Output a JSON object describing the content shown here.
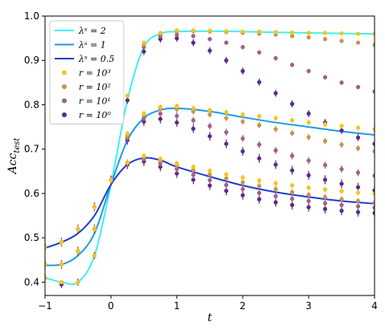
{
  "chart_data": {
    "type": "line",
    "xlabel": "t",
    "ylabel": "Acc_test",
    "xlim": [
      -1,
      4
    ],
    "ylim": [
      0.37,
      1.0
    ],
    "xticks": [
      -1,
      0,
      1,
      2,
      3,
      4
    ],
    "yticks": [
      0.4,
      0.5,
      0.6,
      0.7,
      0.8,
      0.9,
      1.0
    ],
    "xtick_labels": [
      "−1",
      "0",
      "1",
      "2",
      "3",
      "4"
    ],
    "ytick_labels": [
      "0.4",
      "0.5",
      "0.6",
      "0.7",
      "0.8",
      "0.9",
      "1.0"
    ],
    "legend_position": "top-left",
    "lines": [
      {
        "name": "λˢ = 2",
        "color": "#3ff0f0",
        "x": [
          -1,
          -0.75,
          -0.5,
          -0.25,
          0,
          0.25,
          0.5,
          0.75,
          1,
          1.5,
          2,
          3,
          4
        ],
        "y": [
          0.41,
          0.4,
          0.4,
          0.46,
          0.62,
          0.81,
          0.93,
          0.96,
          0.965,
          0.966,
          0.965,
          0.962,
          0.96
        ]
      },
      {
        "name": "λˢ = 1",
        "color": "#1e9be8",
        "x": [
          -1,
          -0.75,
          -0.5,
          -0.25,
          0,
          0.25,
          0.5,
          0.75,
          1,
          1.5,
          2,
          2.5,
          3,
          3.5,
          4
        ],
        "y": [
          0.438,
          0.44,
          0.46,
          0.51,
          0.62,
          0.72,
          0.77,
          0.788,
          0.792,
          0.785,
          0.772,
          0.76,
          0.75,
          0.74,
          0.732
        ]
      },
      {
        "name": "λˢ = 0.5",
        "color": "#1f3fcf",
        "x": [
          -1,
          -0.75,
          -0.5,
          -0.25,
          0,
          0.25,
          0.5,
          0.75,
          1,
          1.5,
          2,
          2.5,
          3,
          3.5,
          4
        ],
        "y": [
          0.477,
          0.49,
          0.51,
          0.55,
          0.62,
          0.665,
          0.68,
          0.675,
          0.66,
          0.638,
          0.618,
          0.603,
          0.592,
          0.583,
          0.577
        ]
      }
    ],
    "scatter": [
      {
        "name": "r = 10³",
        "color": "#f5c518",
        "groups": [
          {
            "x": [
              -1,
              -0.75,
              -0.5,
              -0.25,
              0,
              0.25,
              0.5,
              0.75,
              1,
              1.25,
              1.5,
              1.75,
              2,
              2.25,
              2.5,
              2.75,
              3,
              3.25,
              3.5,
              3.75,
              4
            ],
            "y": [
              0.41,
              0.4,
              0.4,
              0.46,
              0.63,
              0.82,
              0.94,
              0.962,
              0.968,
              0.968,
              0.967,
              0.966,
              0.965,
              0.965,
              0.964,
              0.963,
              0.962,
              0.962,
              0.961,
              0.96,
              0.96
            ],
            "err": 0.003
          },
          {
            "x": [
              -1,
              -0.75,
              -0.5,
              -0.25,
              0,
              0.25,
              0.5,
              0.75,
              1,
              1.25,
              1.5,
              1.75,
              2,
              2.25,
              2.5,
              2.75,
              3,
              3.25,
              3.5,
              3.75,
              4
            ],
            "y": [
              0.44,
              0.44,
              0.47,
              0.52,
              0.63,
              0.735,
              0.78,
              0.795,
              0.797,
              0.792,
              0.788,
              0.783,
              0.778,
              0.774,
              0.77,
              0.765,
              0.76,
              0.756,
              0.752,
              0.748,
              0.745
            ],
            "err": 0.006
          },
          {
            "x": [
              -1,
              -0.75,
              -0.5,
              -0.25,
              0,
              0.25,
              0.5,
              0.75,
              1,
              1.25,
              1.5,
              1.75,
              2,
              2.25,
              2.5,
              2.75,
              3,
              3.25,
              3.5,
              3.75,
              4
            ],
            "y": [
              0.48,
              0.49,
              0.52,
              0.57,
              0.63,
              0.67,
              0.685,
              0.678,
              0.668,
              0.66,
              0.651,
              0.643,
              0.636,
              0.629,
              0.623,
              0.618,
              0.613,
              0.609,
              0.605,
              0.602,
              0.6
            ],
            "err": 0.006
          }
        ]
      },
      {
        "name": "r = 10²",
        "color": "#c8944e",
        "groups": [
          {
            "x": [
              -1,
              -0.75,
              -0.5,
              -0.25,
              0,
              0.25,
              0.5,
              0.75,
              1,
              1.25,
              1.5,
              1.75,
              2,
              2.25,
              2.5,
              2.75,
              3,
              3.25,
              3.5,
              3.75,
              4
            ],
            "y": [
              0.41,
              0.4,
              0.4,
              0.46,
              0.63,
              0.82,
              0.935,
              0.96,
              0.965,
              0.966,
              0.965,
              0.964,
              0.962,
              0.96,
              0.958,
              0.955,
              0.952,
              0.948,
              0.944,
              0.94,
              0.935
            ],
            "err": 0.004
          },
          {
            "x": [
              -1,
              -0.75,
              -0.5,
              -0.25,
              0,
              0.25,
              0.5,
              0.75,
              1,
              1.25,
              1.5,
              1.75,
              2,
              2.25,
              2.5,
              2.75,
              3,
              3.25,
              3.5,
              3.75,
              4
            ],
            "y": [
              0.44,
              0.44,
              0.47,
              0.52,
              0.63,
              0.73,
              0.778,
              0.79,
              0.79,
              0.785,
              0.778,
              0.77,
              0.762,
              0.754,
              0.745,
              0.736,
              0.727,
              0.718,
              0.71,
              0.702,
              0.695
            ],
            "err": 0.007
          },
          {
            "x": [
              -1,
              -0.75,
              -0.5,
              -0.25,
              0,
              0.25,
              0.5,
              0.75,
              1,
              1.25,
              1.5,
              1.75,
              2,
              2.25,
              2.5,
              2.75,
              3,
              3.25,
              3.5,
              3.75,
              4
            ],
            "y": [
              0.48,
              0.49,
              0.52,
              0.57,
              0.63,
              0.67,
              0.683,
              0.675,
              0.663,
              0.653,
              0.643,
              0.634,
              0.625,
              0.617,
              0.61,
              0.603,
              0.597,
              0.592,
              0.587,
              0.583,
              0.579
            ],
            "err": 0.007
          }
        ]
      },
      {
        "name": "r = 10¹",
        "color": "#a0608a",
        "groups": [
          {
            "x": [
              -1,
              -0.75,
              -0.5,
              -0.25,
              0,
              0.25,
              0.5,
              0.75,
              1,
              1.25,
              1.5,
              1.75,
              2,
              2.25,
              2.5,
              2.75,
              3,
              3.25,
              3.5,
              3.75,
              4
            ],
            "y": [
              0.41,
              0.4,
              0.4,
              0.46,
              0.63,
              0.82,
              0.93,
              0.955,
              0.958,
              0.955,
              0.948,
              0.94,
              0.93,
              0.918,
              0.905,
              0.89,
              0.876,
              0.862,
              0.85,
              0.84,
              0.83
            ],
            "err": 0.005
          },
          {
            "x": [
              -1,
              -0.75,
              -0.5,
              -0.25,
              0,
              0.25,
              0.5,
              0.75,
              1,
              1.25,
              1.5,
              1.75,
              2,
              2.25,
              2.5,
              2.75,
              3,
              3.25,
              3.5,
              3.75,
              4
            ],
            "y": [
              0.44,
              0.44,
              0.47,
              0.52,
              0.63,
              0.725,
              0.77,
              0.78,
              0.775,
              0.765,
              0.752,
              0.738,
              0.724,
              0.71,
              0.697,
              0.685,
              0.674,
              0.664,
              0.655,
              0.647,
              0.64
            ],
            "err": 0.008
          },
          {
            "x": [
              -1,
              -0.75,
              -0.5,
              -0.25,
              0,
              0.25,
              0.5,
              0.75,
              1,
              1.25,
              1.5,
              1.75,
              2,
              2.25,
              2.5,
              2.75,
              3,
              3.25,
              3.5,
              3.75,
              4
            ],
            "y": [
              0.48,
              0.49,
              0.52,
              0.57,
              0.63,
              0.668,
              0.678,
              0.668,
              0.655,
              0.642,
              0.63,
              0.619,
              0.61,
              0.601,
              0.594,
              0.588,
              0.583,
              0.578,
              0.574,
              0.571,
              0.568
            ],
            "err": 0.008
          }
        ]
      },
      {
        "name": "r = 10⁰",
        "color": "#5b2a86",
        "groups": [
          {
            "x": [
              -1,
              -0.75,
              -0.5,
              -0.25,
              0,
              0.25,
              0.5,
              0.75,
              1,
              1.25,
              1.5,
              1.75,
              2,
              2.25,
              2.5,
              2.75,
              3,
              3.25,
              3.5,
              3.75,
              4
            ],
            "y": [
              0.41,
              0.395,
              0.4,
              0.46,
              0.63,
              0.81,
              0.92,
              0.948,
              0.95,
              0.94,
              0.922,
              0.9,
              0.876,
              0.851,
              0.826,
              0.802,
              0.78,
              0.76,
              0.742,
              0.726,
              0.712
            ],
            "err": 0.008
          },
          {
            "x": [
              -1,
              -0.75,
              -0.5,
              -0.25,
              0,
              0.25,
              0.5,
              0.75,
              1,
              1.25,
              1.5,
              1.75,
              2,
              2.25,
              2.5,
              2.75,
              3,
              3.25,
              3.5,
              3.75,
              4
            ],
            "y": [
              0.44,
              0.44,
              0.47,
              0.52,
              0.63,
              0.72,
              0.762,
              0.768,
              0.76,
              0.746,
              0.729,
              0.712,
              0.695,
              0.679,
              0.665,
              0.652,
              0.641,
              0.631,
              0.622,
              0.614,
              0.607
            ],
            "err": 0.01
          },
          {
            "x": [
              -1,
              -0.75,
              -0.5,
              -0.25,
              0,
              0.25,
              0.5,
              0.75,
              1,
              1.25,
              1.5,
              1.75,
              2,
              2.25,
              2.5,
              2.75,
              3,
              3.25,
              3.5,
              3.75,
              4
            ],
            "y": [
              0.48,
              0.49,
              0.52,
              0.57,
              0.63,
              0.665,
              0.672,
              0.66,
              0.645,
              0.631,
              0.618,
              0.606,
              0.596,
              0.587,
              0.58,
              0.574,
              0.569,
              0.565,
              0.561,
              0.558,
              0.556
            ],
            "err": 0.01
          }
        ]
      }
    ],
    "legend": [
      {
        "label": "λˢ = 2",
        "kind": "line",
        "color": "#3ff0f0"
      },
      {
        "label": "λˢ = 1",
        "kind": "line",
        "color": "#1e9be8"
      },
      {
        "label": "λˢ = 0.5",
        "kind": "line",
        "color": "#1f3fcf"
      },
      {
        "label": "r = 10³",
        "kind": "dot",
        "color": "#f5c518"
      },
      {
        "label": "r = 10²",
        "kind": "dot",
        "color": "#c8944e"
      },
      {
        "label": "r = 10¹",
        "kind": "dot",
        "color": "#a0608a"
      },
      {
        "label": "r = 10⁰",
        "kind": "dot",
        "color": "#5b2a86"
      }
    ]
  }
}
